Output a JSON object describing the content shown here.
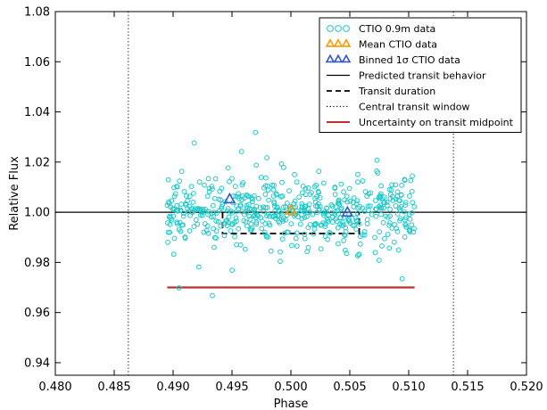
{
  "chart_data": {
    "type": "scatter",
    "xlabel": "Phase",
    "ylabel": "Relative Flux",
    "xlim": [
      0.48,
      0.52
    ],
    "ylim": [
      0.935,
      1.08
    ],
    "xticks": [
      0.48,
      0.485,
      0.49,
      0.495,
      0.5,
      0.505,
      0.51,
      0.515,
      0.52
    ],
    "xtick_labels": [
      "0.480",
      "0.485",
      "0.490",
      "0.495",
      "0.500",
      "0.505",
      "0.510",
      "0.515",
      "0.520"
    ],
    "yticks": [
      0.94,
      0.96,
      0.98,
      1.0,
      1.02,
      1.04,
      1.06,
      1.08
    ],
    "ytick_labels": [
      "0.94",
      "0.96",
      "0.98",
      "1.00",
      "1.02",
      "1.04",
      "1.06",
      "1.08"
    ],
    "grid": false,
    "legend_position": "top-right",
    "colors": {
      "data": "#1fc8c8",
      "mean": "#ff9900",
      "binned": "#3355cc",
      "predicted": "#000000",
      "duration": "#000000",
      "window": "#000000",
      "uncertainty": "#c0302a"
    },
    "legend": [
      {
        "key": "data",
        "label": "CTIO 0.9m data",
        "marker": "circle"
      },
      {
        "key": "mean",
        "label": "Mean CTIO data",
        "marker": "triangle"
      },
      {
        "key": "binned",
        "label": "Binned 1σ CTIO data",
        "marker": "triangle"
      },
      {
        "key": "predicted",
        "label": "Predicted transit behavior",
        "marker": "solid-line"
      },
      {
        "key": "duration",
        "label": "Transit duration",
        "marker": "dashed-line"
      },
      {
        "key": "window",
        "label": "Central transit window",
        "marker": "dotted-line"
      },
      {
        "key": "uncertainty",
        "label": "Uncertainty on transit midpoint",
        "marker": "red-line"
      }
    ],
    "data_series": {
      "x_range": [
        0.4895,
        0.5105
      ],
      "center_flux": 1.0,
      "sigma": 0.0065,
      "n_points": 560
    },
    "predicted_transit": {
      "y": 1.0,
      "x": [
        0.48,
        0.52
      ]
    },
    "transit_duration": {
      "ingress": 0.4942,
      "egress": 0.5058,
      "depth_flux": 0.9915
    },
    "central_transit_window": [
      0.4862,
      0.5138
    ],
    "uncertainty_midpoint": {
      "y": 0.97,
      "x": [
        0.4895,
        0.5105
      ]
    },
    "mean_point": {
      "x": 0.5,
      "y": 1.0005
    },
    "binned_points": [
      {
        "x": 0.4948,
        "y": 1.005
      },
      {
        "x": 0.5048,
        "y": 0.9997
      }
    ]
  }
}
